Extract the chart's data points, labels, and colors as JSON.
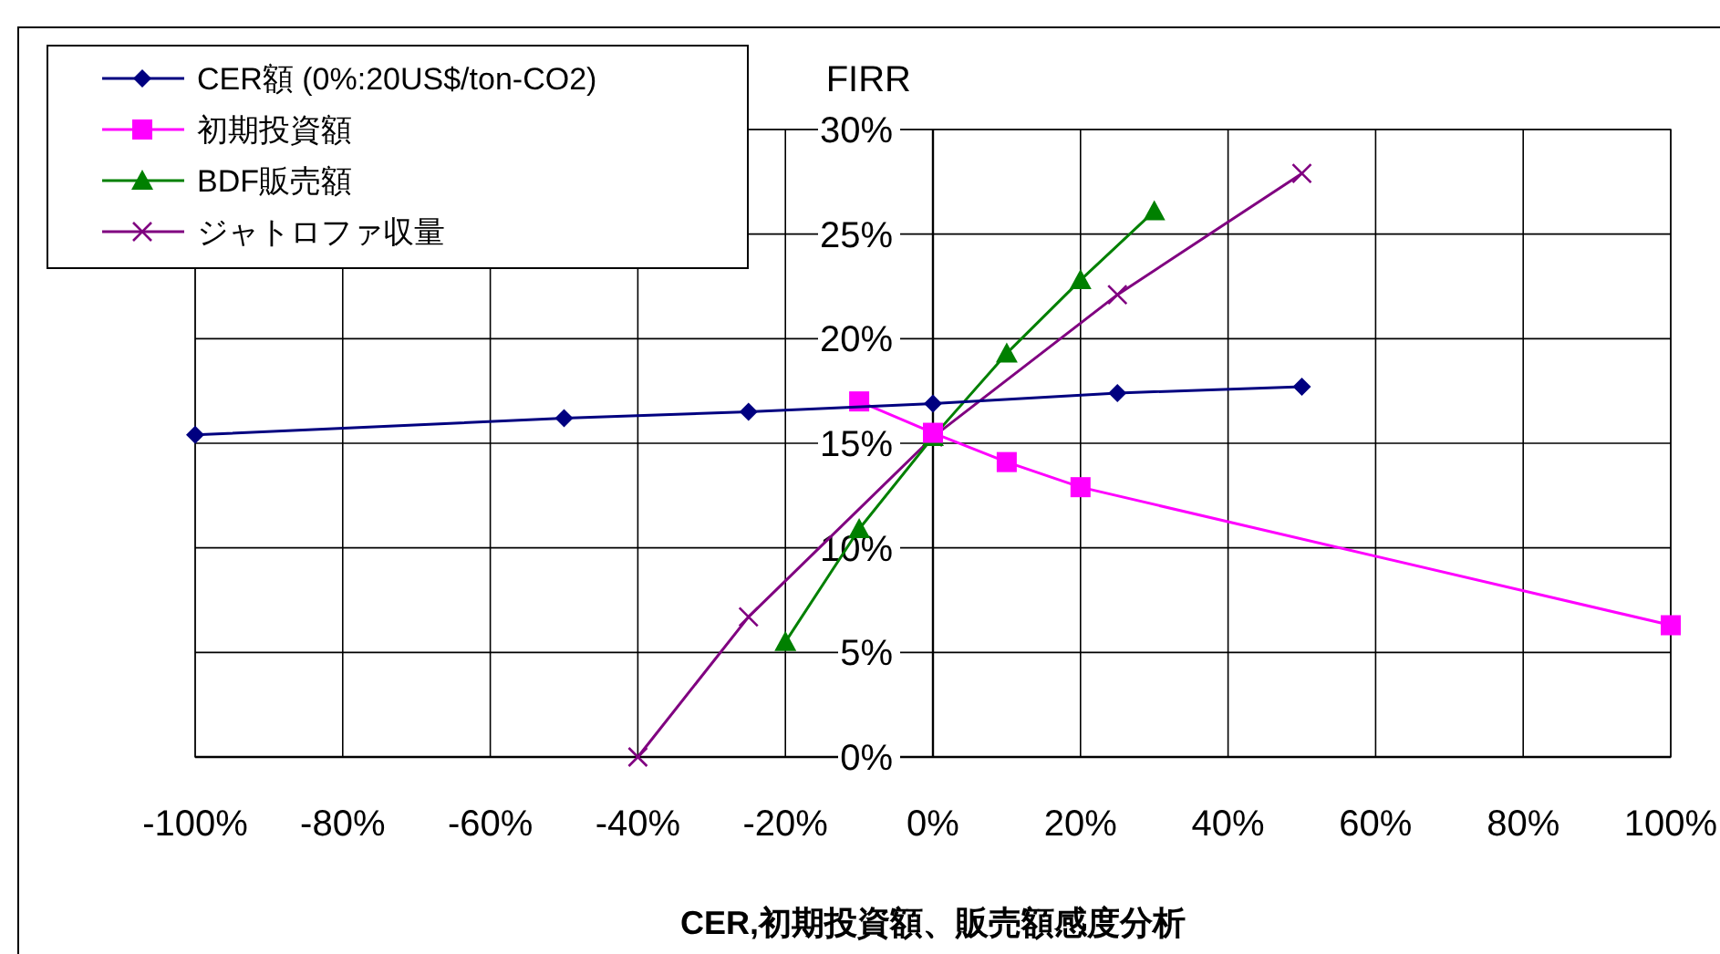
{
  "chart_data": {
    "type": "line",
    "ylabel": "FIRR",
    "title": "CER,初期投資額、販売額感度分析",
    "xlim": [
      -100,
      100
    ],
    "xticks": [
      {
        "value": -100,
        "label": "-100%"
      },
      {
        "value": -80,
        "label": "-80%"
      },
      {
        "value": -60,
        "label": "-60%"
      },
      {
        "value": -40,
        "label": "-40%"
      },
      {
        "value": -20,
        "label": "-20%"
      },
      {
        "value": 0,
        "label": "0%"
      },
      {
        "value": 20,
        "label": "20%"
      },
      {
        "value": 40,
        "label": "40%"
      },
      {
        "value": 60,
        "label": "60%"
      },
      {
        "value": 80,
        "label": "80%"
      },
      {
        "value": 100,
        "label": "100%"
      }
    ],
    "ylim": [
      0,
      30
    ],
    "yticks": [
      {
        "value": 0,
        "label": "0%"
      },
      {
        "value": 5,
        "label": "5%"
      },
      {
        "value": 10,
        "label": "10%"
      },
      {
        "value": 15,
        "label": "15%"
      },
      {
        "value": 20,
        "label": "20%"
      },
      {
        "value": 25,
        "label": "25%"
      },
      {
        "value": 30,
        "label": "30%"
      }
    ],
    "grid": true,
    "legend": "top left",
    "series": [
      {
        "name": "CER額 (0%:20US$/ton-CO2)",
        "color": "#000080",
        "marker": "diamond",
        "x": [
          -100,
          -50,
          -25,
          0,
          25,
          50
        ],
        "values": [
          15.4,
          16.2,
          16.5,
          16.9,
          17.4,
          17.7
        ]
      },
      {
        "name": "初期投資額",
        "color": "#ff00ff",
        "marker": "square",
        "x": [
          -10,
          0,
          10,
          20,
          100
        ],
        "values": [
          17.0,
          15.5,
          14.1,
          12.9,
          6.3
        ]
      },
      {
        "name": "BDF販売額",
        "color": "#008000",
        "marker": "triangle",
        "x": [
          -20,
          -10,
          0,
          10,
          20,
          30
        ],
        "values": [
          5.5,
          10.9,
          15.3,
          19.3,
          22.8,
          26.1
        ]
      },
      {
        "name": "ジャトロファ収量",
        "color": "#800080",
        "marker": "cross",
        "x": [
          -40,
          -25,
          0,
          25,
          50
        ],
        "values": [
          0,
          6.7,
          15.3,
          22.1,
          27.9
        ]
      }
    ]
  }
}
